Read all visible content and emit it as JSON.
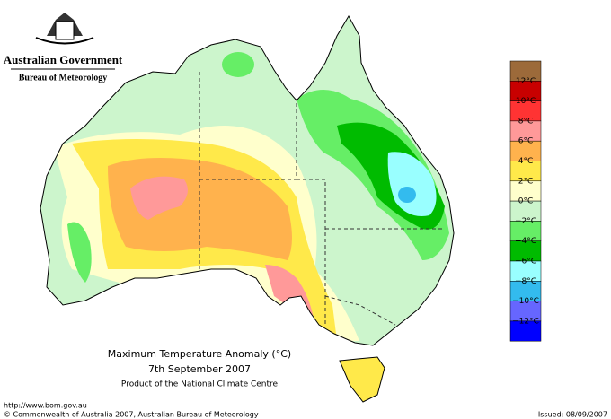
{
  "header": {
    "title": "Australian Government",
    "subtitle": "Bureau of Meteorology"
  },
  "map": {
    "title": "Maximum Temperature Anomaly (°C)",
    "date": "7th September 2007",
    "credit": "Product of the National Climate Centre"
  },
  "legend": {
    "colors": [
      "#9c6a3a",
      "#c80000",
      "#ff3333",
      "#ff9999",
      "#ffb24d",
      "#ffe94a",
      "#ffffcc",
      "#ccf5cc",
      "#66ee66",
      "#00bb00",
      "#99ffff",
      "#33bbee",
      "#6666ff",
      "#0000ff"
    ],
    "labels": [
      "12°C",
      "10°C",
      "8°C",
      "6°C",
      "4°C",
      "2°C",
      "0°C",
      "−2°C",
      "−4°C",
      "−6°C",
      "−8°C",
      "−10°C",
      "−12°C"
    ]
  },
  "footer": {
    "url": "http://www.bom.gov.au",
    "copyright": "© Commonwealth of Australia 2007, Australian Bureau of Meteorology",
    "issued": "Issued: 08/09/2007"
  }
}
